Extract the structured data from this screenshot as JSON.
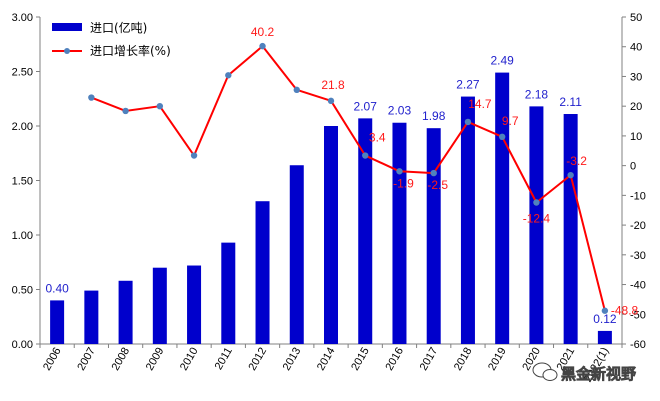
{
  "chart_data": {
    "type": "bar+line",
    "categories": [
      "2006",
      "2007",
      "2008",
      "2009",
      "2010",
      "2011",
      "2012",
      "2013",
      "2014",
      "2015",
      "2016",
      "2017",
      "2018",
      "2019",
      "2020",
      "2021",
      "2022(1)"
    ],
    "series": [
      {
        "name": "进口(亿吨)",
        "type": "bar",
        "axis": "left",
        "color": "#0000cc",
        "values": [
          0.4,
          0.49,
          0.58,
          0.7,
          0.72,
          0.93,
          1.31,
          1.64,
          2.0,
          2.07,
          2.03,
          1.98,
          2.27,
          2.49,
          2.18,
          2.11,
          0.12
        ],
        "labels": {
          "0": "0.40",
          "9": "2.07",
          "10": "2.03",
          "11": "1.98",
          "12": "2.27",
          "13": "2.49",
          "14": "2.18",
          "15": "2.11",
          "16": "0.12"
        }
      },
      {
        "name": "进口增长率(%)",
        "type": "line",
        "axis": "right",
        "color": "#ff0000",
        "marker_color": "#4f81bd",
        "values": [
          null,
          22.9,
          18.4,
          20.0,
          3.4,
          30.4,
          40.2,
          25.5,
          21.8,
          3.4,
          -1.9,
          -2.5,
          14.7,
          9.7,
          -12.4,
          -3.2,
          -48.8
        ],
        "labels": {
          "6": "40.2",
          "8": "21.8",
          "9": "3.4",
          "10": "-1.9",
          "11": "-2.5",
          "12": "14.7",
          "13": "9.7",
          "14": "-12.4",
          "15": "-3.2",
          "16": "-48.8"
        }
      }
    ],
    "y_left": {
      "min": 0,
      "max": 3,
      "ticks": [
        "0.00",
        "0.50",
        "1.00",
        "1.50",
        "2.00",
        "2.50",
        "3.00"
      ]
    },
    "y_right": {
      "min": -60,
      "max": 50,
      "ticks": [
        "-60",
        "-50",
        "-40",
        "-30",
        "-20",
        "-10",
        "0",
        "10",
        "20",
        "30",
        "40",
        "50"
      ]
    },
    "legend": "top-left",
    "grid": false
  },
  "legend": {
    "bar_label": "进口(亿吨)",
    "line_label": "进口增长率(%)"
  },
  "watermark": {
    "text": "黑金新视野",
    "icon": "wechat-icon"
  }
}
